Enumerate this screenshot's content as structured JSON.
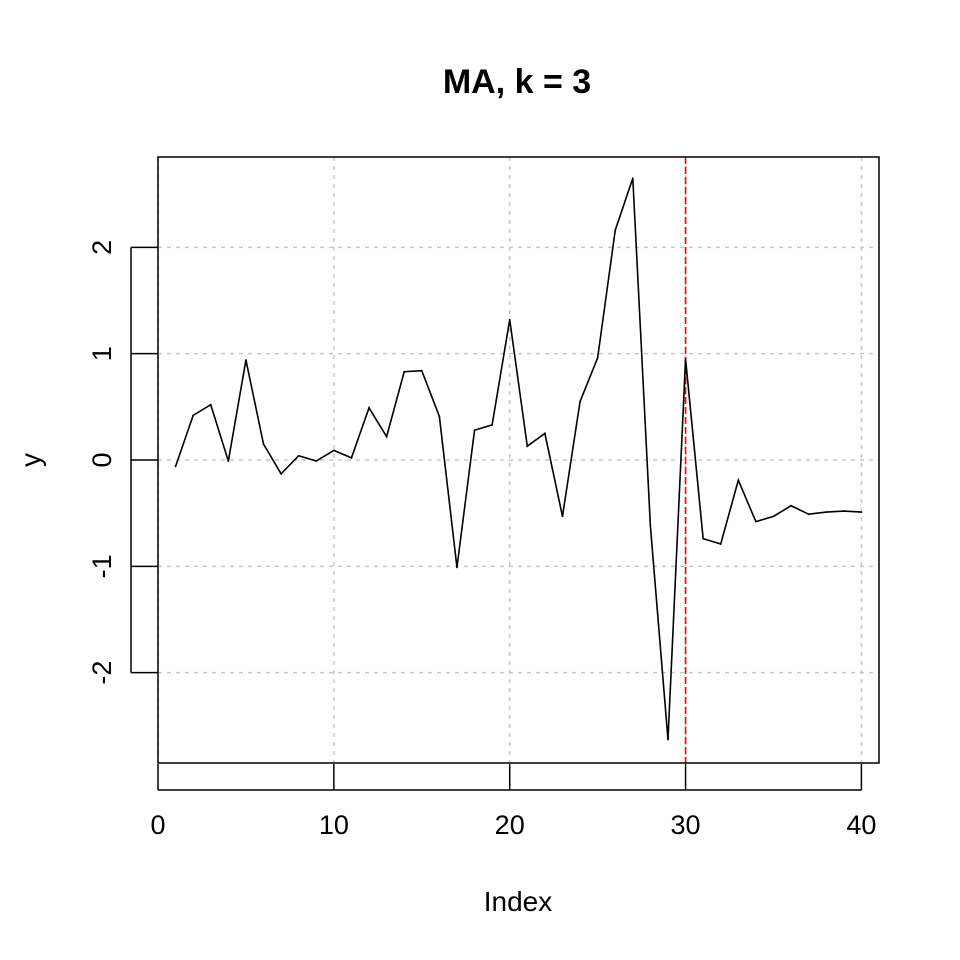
{
  "chart_data": {
    "type": "line",
    "title": "MA, k = 3",
    "xlabel": "Index",
    "ylabel": "y",
    "xlim": [
      0,
      41
    ],
    "ylim": [
      -2.85,
      2.85
    ],
    "xticks": [
      0,
      10,
      20,
      30,
      40
    ],
    "yticks": [
      -2,
      -1,
      0,
      1,
      2
    ],
    "grid": true,
    "x": [
      1,
      2,
      3,
      4,
      5,
      6,
      7,
      8,
      9,
      10,
      11,
      12,
      13,
      14,
      15,
      16,
      17,
      18,
      19,
      20,
      21,
      22,
      23,
      24,
      25,
      26,
      27,
      28,
      29,
      30,
      31,
      32,
      33,
      34,
      35,
      36,
      37,
      38,
      39,
      40
    ],
    "series": [
      {
        "color": "#000000",
        "values": [
          -0.06,
          0.42,
          0.52,
          -0.01,
          0.94,
          0.15,
          -0.13,
          0.04,
          -0.01,
          0.09,
          0.02,
          0.49,
          0.22,
          0.83,
          0.84,
          0.41,
          -1.01,
          0.28,
          0.33,
          1.32,
          0.13,
          0.25,
          -0.53,
          0.55,
          0.96,
          2.16,
          2.65,
          -0.62,
          -2.63,
          0.95,
          -0.74,
          -0.79,
          -0.19,
          -0.58,
          -0.53,
          -0.43,
          -0.51,
          -0.49,
          -0.48,
          -0.49
        ]
      }
    ],
    "vline": {
      "x": 30,
      "color": "#ff0000"
    }
  }
}
